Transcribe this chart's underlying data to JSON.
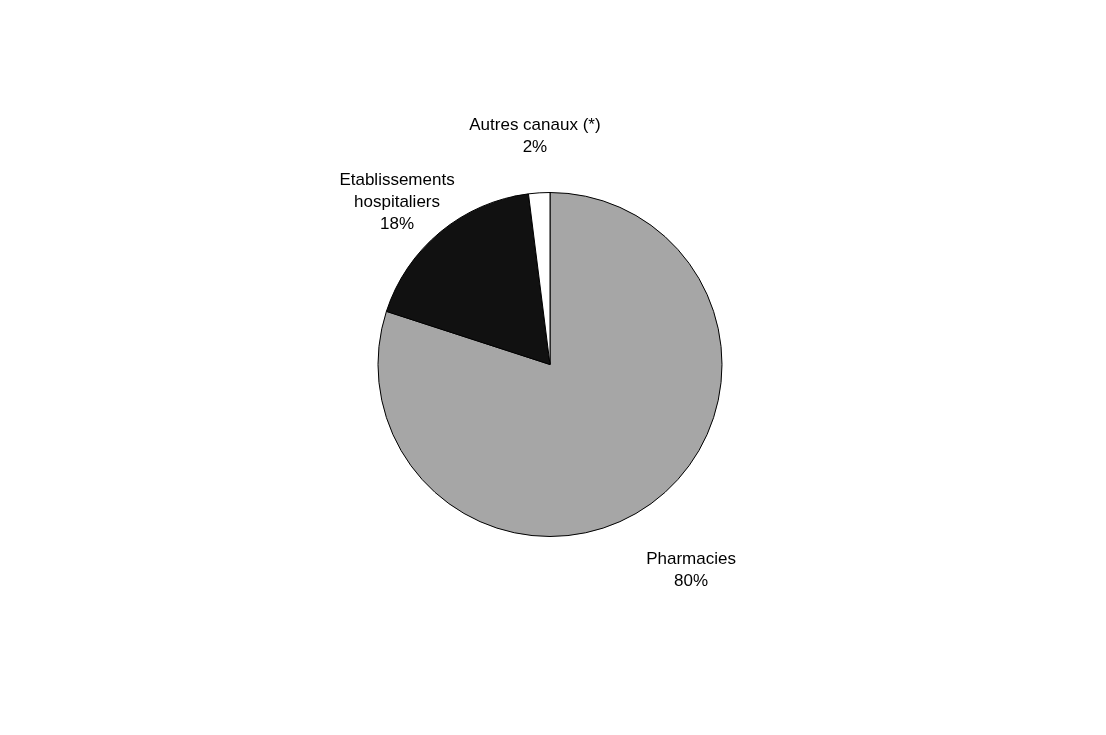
{
  "chart_data": {
    "type": "pie",
    "categories": [
      "Pharmacies",
      "Etablissements hospitaliers",
      "Autres canaux (*)"
    ],
    "values": [
      80,
      18,
      2
    ],
    "colors": [
      "#a6a6a6",
      "#111111",
      "#ffffff"
    ],
    "value_labels": [
      "80%",
      "18%",
      "2%"
    ],
    "legend": false
  }
}
